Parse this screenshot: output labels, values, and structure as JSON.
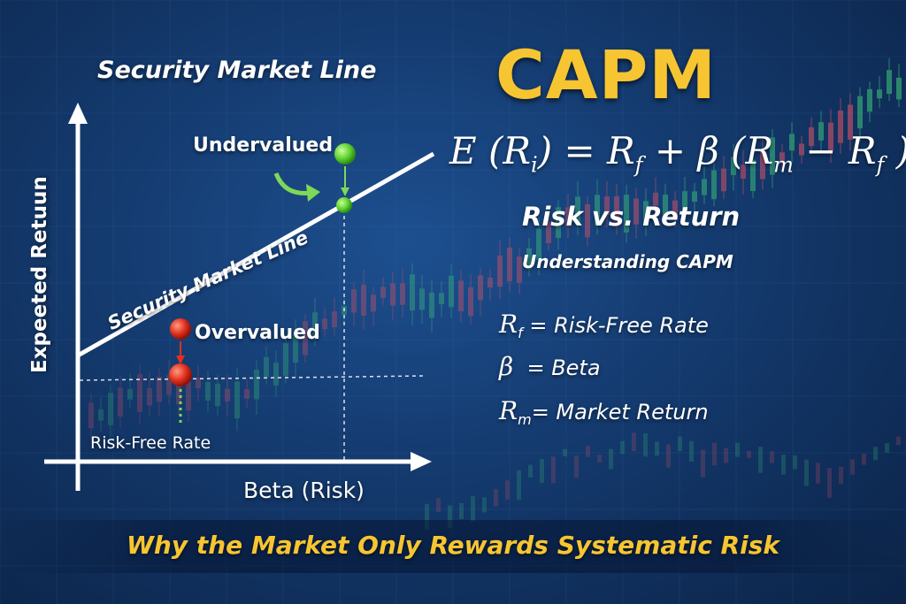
{
  "title": "CAPM",
  "diagram_title": "Security Market Line",
  "formula": {
    "lhs": "E",
    "ri_base": "R",
    "ri_sub": "i",
    "eq": "=",
    "rf_base": "R",
    "rf_sub": "f",
    "plus": "+",
    "beta": "β",
    "rm_base": "R",
    "rm_sub": "m",
    "minus": "−",
    "rf2_base": "R",
    "rf2_sub": "f"
  },
  "subtitle": "Risk vs. Return",
  "subtitle2": "Understanding CAPM",
  "legend": {
    "rf": {
      "sym": "R",
      "sub": "f",
      "text": "= Risk-Free Rate"
    },
    "beta": {
      "sym": "β",
      "text": "= Beta"
    },
    "rm": {
      "sym": "R",
      "sub": "m",
      "text": "= Market Return"
    }
  },
  "chart": {
    "sml_label": "Security Market Line",
    "undervalued_label": "Undervalued",
    "overvalued_label": "Overvalued",
    "risk_free_label": "Risk-Free Rate",
    "x_axis_label": "Beta (Risk)",
    "y_axis_label": "Expeeted Retuun"
  },
  "footer": "Why the Market Only Rewards Systematic Risk",
  "colors": {
    "accent": "#f7c531",
    "undervalued": "#5fd130",
    "overvalued": "#e0301e",
    "arrow": "#7ed957"
  }
}
